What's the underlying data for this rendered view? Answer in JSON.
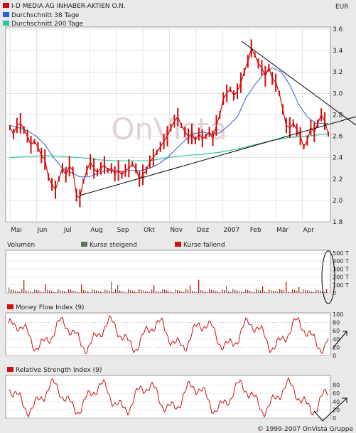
{
  "currency": "EUR",
  "copyright": "© 1999-2007 OnVista Gruppe",
  "watermark": "OnVista",
  "colors": {
    "background": "#e9e9e9",
    "panel": "#ffffff",
    "grid": "#c8c8c8",
    "price": "#d10a0a",
    "ma38": "#2a5fd6",
    "ma200": "#27c8a0",
    "volume_up": "#5a7a5a",
    "volume_down": "#cc1111",
    "indicator": "#cc1111"
  },
  "chart_data": [
    {
      "type": "line",
      "title": "",
      "legend": [
        {
          "name": "I-D MEDIA AG INHABER-AKTIEN O.N.",
          "color": "#d10a0a"
        },
        {
          "name": "Durchschnitt 38 Tage",
          "color": "#2a5fd6"
        },
        {
          "name": "Durchschnitt 200 Tage",
          "color": "#27c8a0"
        }
      ],
      "x_months": [
        "Mai",
        "Jun",
        "Jul",
        "Aug",
        "Sep",
        "Okt",
        "Nov",
        "Dez",
        "2007",
        "Feb",
        "Mär",
        "Apr"
      ],
      "y_ticks": [
        "3.6",
        "3.4",
        "3.2",
        "3.0",
        "2.8",
        "2.6",
        "2.4",
        "2.2",
        "2.0",
        "1.8"
      ],
      "ylim": [
        1.8,
        3.6
      ],
      "series": [
        {
          "name": "I-D MEDIA AG INHABER-AKTIEN O.N.",
          "x": [
            0,
            4,
            8,
            12,
            16,
            20,
            24,
            28,
            32,
            36,
            40,
            44,
            48,
            52,
            56,
            60,
            64,
            68,
            72,
            76,
            80,
            84,
            88,
            92,
            96,
            100,
            104,
            108,
            112,
            116,
            120,
            124,
            128,
            132,
            136,
            140,
            144,
            148,
            152,
            156,
            160,
            164,
            168,
            172,
            176,
            180,
            184,
            188,
            192,
            196,
            200,
            204,
            208,
            212,
            216,
            220,
            224,
            228,
            232,
            236,
            240,
            244,
            248,
            252,
            256,
            260,
            264,
            268,
            272,
            276,
            280,
            284,
            288,
            292,
            296,
            300,
            304,
            308,
            312,
            316,
            320,
            324,
            328,
            332,
            336,
            340,
            344,
            348,
            352,
            356,
            360,
            364
          ],
          "values": [
            2.68,
            2.62,
            2.7,
            2.72,
            2.66,
            2.6,
            2.52,
            2.55,
            2.5,
            2.42,
            2.38,
            2.22,
            2.15,
            2.1,
            2.2,
            2.3,
            2.24,
            2.32,
            2.28,
            2.05,
            2.02,
            2.18,
            2.28,
            2.36,
            2.3,
            2.26,
            2.3,
            2.33,
            2.28,
            2.3,
            2.25,
            2.28,
            2.24,
            2.28,
            2.3,
            2.34,
            2.3,
            2.2,
            2.24,
            2.28,
            2.36,
            2.4,
            2.45,
            2.5,
            2.55,
            2.6,
            2.68,
            2.74,
            2.78,
            2.7,
            2.64,
            2.6,
            2.62,
            2.56,
            2.62,
            2.58,
            2.6,
            2.64,
            2.58,
            2.7,
            2.8,
            2.95,
            3.0,
            3.04,
            2.98,
            3.02,
            3.1,
            3.2,
            3.3,
            3.42,
            3.36,
            3.28,
            3.24,
            3.16,
            3.24,
            3.14,
            3.1,
            3.0,
            2.85,
            2.7,
            2.68,
            2.72,
            2.66,
            2.6,
            2.5,
            2.56,
            2.68,
            2.64,
            2.72,
            2.8,
            2.74,
            2.62
          ]
        },
        {
          "name": "Durchschnitt 38 Tage",
          "x": [
            0,
            10,
            20,
            30,
            40,
            50,
            60,
            70,
            80,
            90,
            100,
            110,
            120,
            130,
            140,
            150,
            160,
            170,
            180,
            190,
            200,
            210,
            220,
            230,
            240,
            250,
            260,
            270,
            280,
            290,
            300,
            310,
            320,
            330,
            340,
            350,
            360,
            364
          ],
          "values": [
            2.7,
            2.68,
            2.65,
            2.6,
            2.52,
            2.4,
            2.3,
            2.26,
            2.22,
            2.22,
            2.25,
            2.28,
            2.28,
            2.27,
            2.28,
            2.28,
            2.3,
            2.34,
            2.4,
            2.48,
            2.56,
            2.62,
            2.64,
            2.62,
            2.63,
            2.7,
            2.78,
            2.96,
            3.08,
            3.18,
            3.24,
            3.2,
            3.08,
            2.9,
            2.78,
            2.72,
            2.72,
            2.72
          ]
        },
        {
          "name": "Durchschnitt 200 Tage",
          "x": [
            0,
            20,
            40,
            60,
            80,
            100,
            120,
            140,
            160,
            180,
            200,
            220,
            240,
            260,
            280,
            300,
            320,
            340,
            360,
            364
          ],
          "values": [
            2.4,
            2.41,
            2.42,
            2.41,
            2.4,
            2.38,
            2.37,
            2.37,
            2.37,
            2.4,
            2.42,
            2.43,
            2.45,
            2.48,
            2.52,
            2.56,
            2.59,
            2.6,
            2.62,
            2.62
          ]
        }
      ]
    },
    {
      "type": "bar",
      "title": "Volumen",
      "legend": [
        {
          "name": "Kurse steigend",
          "color": "#5a7a5a"
        },
        {
          "name": "Kurse fallend",
          "color": "#cc1111"
        }
      ],
      "y_ticks": [
        "500 T",
        "400 T",
        "300 T",
        "200 T",
        "100 T",
        "0"
      ],
      "ylim": [
        0,
        500
      ]
    },
    {
      "type": "line",
      "title": "Money Flow Index (9)",
      "y_ticks": [
        "100",
        "80",
        "60",
        "40",
        "20",
        "0"
      ],
      "ylim": [
        0,
        100
      ]
    },
    {
      "type": "line",
      "title": "Relative Strength Index (9)",
      "y_ticks": [
        "80",
        "60",
        "40",
        "20",
        "0"
      ],
      "ylim": [
        0,
        100
      ]
    }
  ]
}
